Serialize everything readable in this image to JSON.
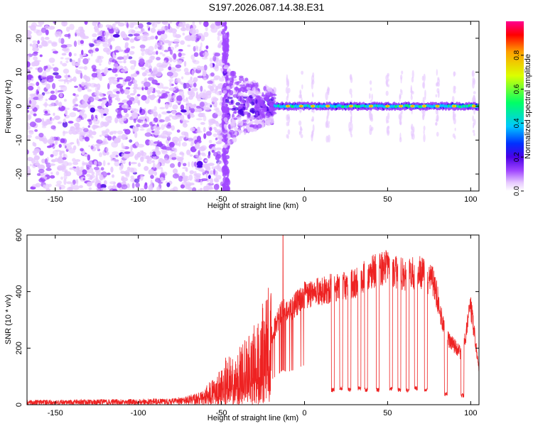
{
  "title": "S197.2026.087.14.38.E31",
  "colors": {
    "snr_line": "#ee2222",
    "frame": "#000000",
    "colormap": [
      "#ffffff",
      "#e6c8ff",
      "#a046ff",
      "#4a00e6",
      "#0030ff",
      "#00c8ff",
      "#00ff66",
      "#dcff00",
      "#ffa000",
      "#ff0000"
    ]
  },
  "chart_data": [
    {
      "type": "heatmap",
      "name": "spectrogram",
      "title": "S197.2026.087.14.38.E31",
      "xlabel": "Height of straight line (km)",
      "ylabel": "Frequency (Hz)",
      "xlim": [
        -167,
        105
      ],
      "ylim": [
        -25,
        25
      ],
      "xticks": [
        -150,
        -100,
        -50,
        0,
        50,
        100
      ],
      "yticks": [
        -20,
        -10,
        0,
        10,
        20
      ],
      "colorbar": {
        "label": "Normalized spectral amplitude",
        "range": [
          0,
          1
        ],
        "ticks": [
          0.0,
          0.2,
          0.4,
          0.6,
          0.8
        ]
      },
      "regions": [
        {
          "desc": "broadband noise",
          "x": [
            -167,
            -48
          ],
          "y": [
            -25,
            25
          ],
          "level": 0.15
        },
        {
          "desc": "transition scatter",
          "x": [
            -48,
            -18
          ],
          "y": [
            -12,
            10
          ],
          "level": 0.25
        },
        {
          "desc": "carrier line",
          "x": [
            -18,
            105
          ],
          "y": [
            -1,
            1
          ],
          "level": 0.75
        }
      ],
      "carrier_peaks_km": [
        -10,
        -2,
        5,
        14,
        28,
        40,
        50,
        58,
        65,
        72,
        80,
        90,
        102
      ]
    },
    {
      "type": "line",
      "name": "snr",
      "xlabel": "Height of straight line (km)",
      "ylabel": "SNR (10 * v/v)",
      "xlim": [
        -167,
        105
      ],
      "ylim": [
        0,
        600
      ],
      "xticks": [
        -150,
        -100,
        -50,
        0,
        50,
        100
      ],
      "yticks": [
        0,
        200,
        400,
        600
      ],
      "envelope": {
        "x": [
          -167,
          -80,
          -70,
          -60,
          -50,
          -40,
          -30,
          -20,
          -13,
          -10,
          0,
          10,
          20,
          30,
          40,
          50,
          55,
          60,
          70,
          78,
          85,
          95,
          100,
          105
        ],
        "y": [
          15,
          20,
          30,
          45,
          90,
          110,
          160,
          250,
          350,
          330,
          400,
          410,
          430,
          440,
          480,
          500,
          480,
          470,
          480,
          440,
          250,
          180,
          360,
          130
        ]
      },
      "spike": {
        "x": -13,
        "y": 600
      },
      "dropouts": [
        {
          "x": 17,
          "y": 45
        },
        {
          "x": 22,
          "y": 50
        },
        {
          "x": 27,
          "y": 45
        },
        {
          "x": 33,
          "y": 50
        },
        {
          "x": 37,
          "y": 45
        },
        {
          "x": 44,
          "y": 45
        },
        {
          "x": 52,
          "y": 50
        },
        {
          "x": 57,
          "y": 45
        },
        {
          "x": 62,
          "y": 45
        },
        {
          "x": 67,
          "y": 50
        },
        {
          "x": 73,
          "y": 45
        },
        {
          "x": 85,
          "y": 30
        },
        {
          "x": 95,
          "y": 25
        }
      ]
    }
  ]
}
